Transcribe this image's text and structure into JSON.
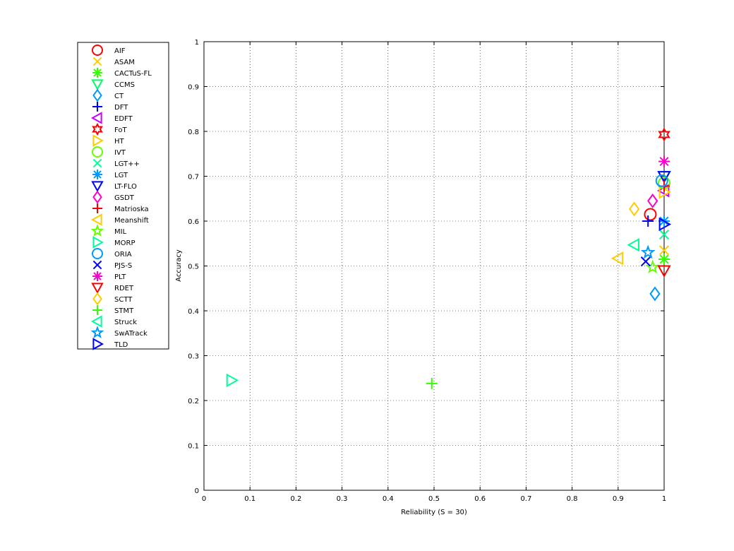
{
  "chart_data": {
    "type": "scatter",
    "xlabel": "Reliability (S = 30)",
    "ylabel": "Accuracy",
    "xlim": [
      0,
      1
    ],
    "ylim": [
      0,
      1
    ],
    "xticks": [
      "0",
      "0.1",
      "0.2",
      "0.3",
      "0.4",
      "0.5",
      "0.6",
      "0.7",
      "0.8",
      "0.9",
      "1"
    ],
    "yticks": [
      "0",
      "0.1",
      "0.2",
      "0.3",
      "0.4",
      "0.5",
      "0.6",
      "0.7",
      "0.8",
      "0.9",
      "1"
    ],
    "grid": true,
    "legend_position": "outside-left",
    "series": [
      {
        "name": "AIF",
        "marker": "circle",
        "color": "#ff0000",
        "x": 0.97,
        "y": 0.615
      },
      {
        "name": "ASAM",
        "marker": "x",
        "color": "#ffcc00",
        "x": 1.0,
        "y": 0.535
      },
      {
        "name": "CACTuS-FL",
        "marker": "asterisk",
        "color": "#33ff00",
        "x": 1.0,
        "y": 0.515
      },
      {
        "name": "CCMS",
        "marker": "triangle-down",
        "color": "#00ff66",
        "x": 1.0,
        "y": 0.7
      },
      {
        "name": "CT",
        "marker": "diamond",
        "color": "#0099ff",
        "x": 0.98,
        "y": 0.438
      },
      {
        "name": "DFT",
        "marker": "plus",
        "color": "#0000ff",
        "x": 0.965,
        "y": 0.6
      },
      {
        "name": "EDFT",
        "marker": "triangle-left",
        "color": "#cc00ff",
        "x": 1.0,
        "y": 0.668
      },
      {
        "name": "FoT",
        "marker": "hexagram",
        "color": "#ff0000",
        "x": 1.0,
        "y": 0.793
      },
      {
        "name": "HT",
        "marker": "triangle-right",
        "color": "#ffcc00",
        "x": 1.0,
        "y": 0.665
      },
      {
        "name": "IVT",
        "marker": "circle",
        "color": "#66ff00",
        "x": 1.0,
        "y": 0.685
      },
      {
        "name": "LGT++",
        "marker": "x",
        "color": "#00ff99",
        "x": 1.0,
        "y": 0.57
      },
      {
        "name": "LGT",
        "marker": "asterisk",
        "color": "#0099ff",
        "x": 1.0,
        "y": 0.6
      },
      {
        "name": "LT-FLO",
        "marker": "triangle-down",
        "color": "#0000ff",
        "x": 1.0,
        "y": 0.7
      },
      {
        "name": "GSDT",
        "marker": "diamond",
        "color": "#ff00cc",
        "x": 0.975,
        "y": 0.645
      },
      {
        "name": "Matrioska",
        "marker": "plus",
        "color": "#ff0000",
        "x": 1.0,
        "y": 0.678
      },
      {
        "name": "Meanshift",
        "marker": "triangle-left",
        "color": "#ffcc00",
        "x": 0.9,
        "y": 0.517
      },
      {
        "name": "MIL",
        "marker": "pentagram",
        "color": "#66ff00",
        "x": 0.975,
        "y": 0.497
      },
      {
        "name": "MORP",
        "marker": "triangle-right",
        "color": "#00ff99",
        "x": 0.06,
        "y": 0.245
      },
      {
        "name": "ORIA",
        "marker": "circle",
        "color": "#0099ff",
        "x": 0.995,
        "y": 0.69
      },
      {
        "name": "PJS-S",
        "marker": "x",
        "color": "#0000ff",
        "x": 0.96,
        "y": 0.51
      },
      {
        "name": "PLT",
        "marker": "asterisk",
        "color": "#ff00cc",
        "x": 1.0,
        "y": 0.733
      },
      {
        "name": "RDET",
        "marker": "triangle-down",
        "color": "#ff0000",
        "x": 1.0,
        "y": 0.49
      },
      {
        "name": "SCTT",
        "marker": "diamond",
        "color": "#ffcc00",
        "x": 0.935,
        "y": 0.627
      },
      {
        "name": "STMT",
        "marker": "plus",
        "color": "#33ff00",
        "x": 0.495,
        "y": 0.238
      },
      {
        "name": "Struck",
        "marker": "triangle-left",
        "color": "#00ff99",
        "x": 0.935,
        "y": 0.547
      },
      {
        "name": "SwATrack",
        "marker": "pentagram",
        "color": "#0099ff",
        "x": 0.965,
        "y": 0.53
      },
      {
        "name": "TLD",
        "marker": "triangle-right",
        "color": "#0000ff",
        "x": 1.0,
        "y": 0.593
      }
    ]
  }
}
